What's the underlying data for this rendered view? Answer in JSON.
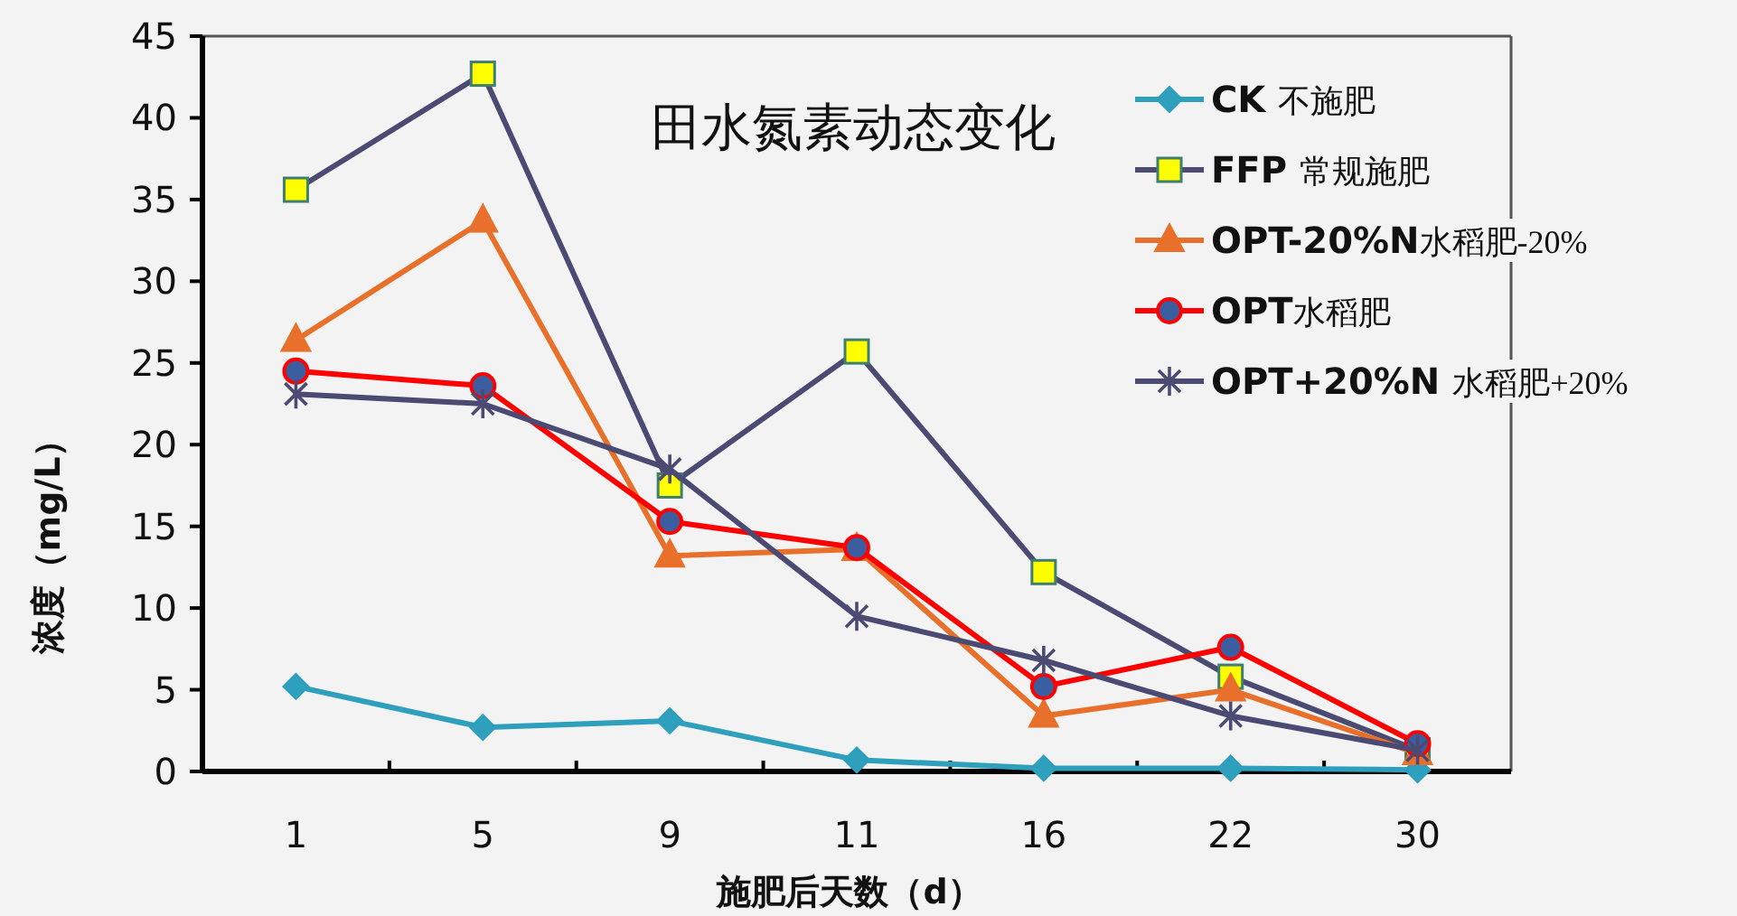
{
  "chart_data": {
    "type": "line",
    "title": "田水氮素动态变化",
    "xlabel": "施肥后天数（d）",
    "ylabel": "浓度（mg/L）",
    "categories": [
      "1",
      "5",
      "9",
      "11",
      "16",
      "22",
      "30"
    ],
    "series": [
      {
        "name": "CK 不施肥",
        "color": "#2e9fbd",
        "marker": "diamond",
        "values": [
          5.2,
          2.7,
          3.1,
          0.7,
          0.2,
          0.2,
          0.1
        ]
      },
      {
        "name": "FFP 常规施肥",
        "color": "#4a4a73",
        "marker": "square",
        "values": [
          35.6,
          42.7,
          17.5,
          25.7,
          12.2,
          5.8,
          1.3
        ]
      },
      {
        "name": "OPT-20%N水稻肥-20%",
        "color": "#e8702a",
        "marker": "triangle",
        "values": [
          26.4,
          33.7,
          13.2,
          13.6,
          3.4,
          5.0,
          1.1
        ]
      },
      {
        "name": "OPT水稻肥",
        "color": "#ff0000",
        "marker": "circle",
        "values": [
          24.5,
          23.6,
          15.3,
          13.7,
          5.2,
          7.6,
          1.7
        ]
      },
      {
        "name": "OPT+20%N 水稻肥+20%",
        "color": "#4a4a73",
        "marker": "cross",
        "values": [
          23.1,
          22.5,
          18.5,
          9.5,
          6.8,
          3.4,
          1.3
        ]
      }
    ],
    "ylim": [
      0,
      45
    ],
    "yticks": [
      0,
      5,
      10,
      15,
      20,
      25,
      30,
      35,
      40,
      45
    ],
    "legend": "top right",
    "grid": false,
    "line_style": "solid"
  }
}
